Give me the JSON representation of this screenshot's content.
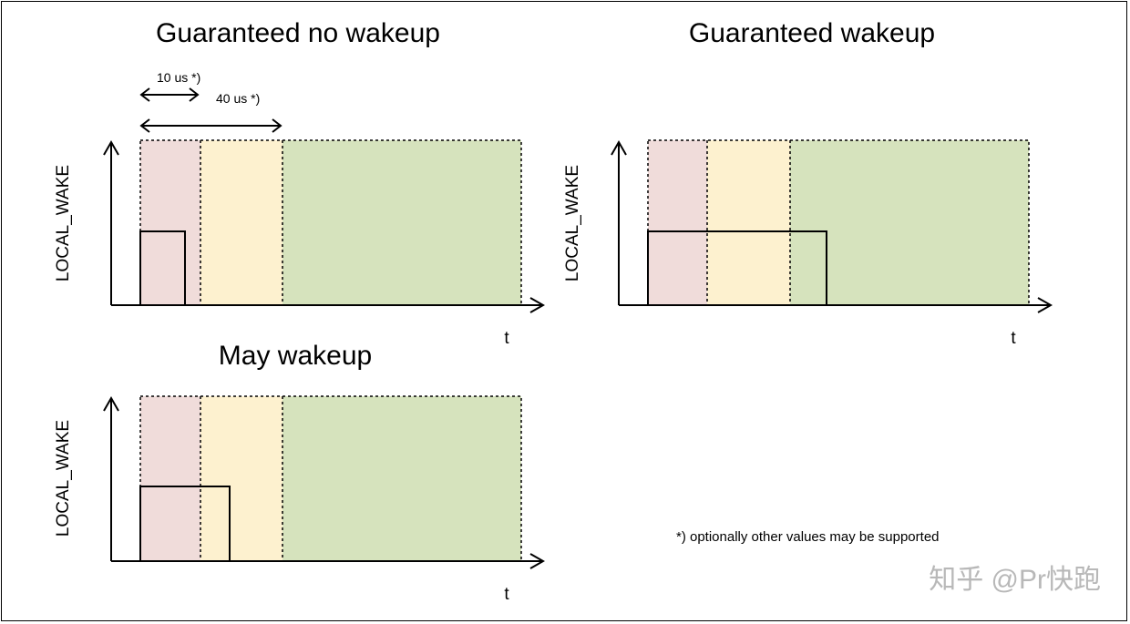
{
  "colors": {
    "zone_no_wake": "#f0dcda",
    "zone_may_wake": "#fdf1cf",
    "zone_wake": "#d6e3bd",
    "line": "#000000",
    "watermark": "#b8b8b8"
  },
  "panels": [
    {
      "title": "Guaranteed no wakeup",
      "y_axis_label": "LOCAL_WAKE",
      "x_axis_label": "t",
      "dimensions": [
        {
          "label": "10 us *)"
        },
        {
          "label": "40 us *)"
        }
      ]
    },
    {
      "title": "Guaranteed wakeup",
      "y_axis_label": "LOCAL_WAKE",
      "x_axis_label": "t"
    },
    {
      "title": "May wakeup",
      "y_axis_label": "LOCAL_WAKE",
      "x_axis_label": "t"
    }
  ],
  "footnote": "*) optionally other values may be supported",
  "watermark": "知乎 @Pr快跑"
}
